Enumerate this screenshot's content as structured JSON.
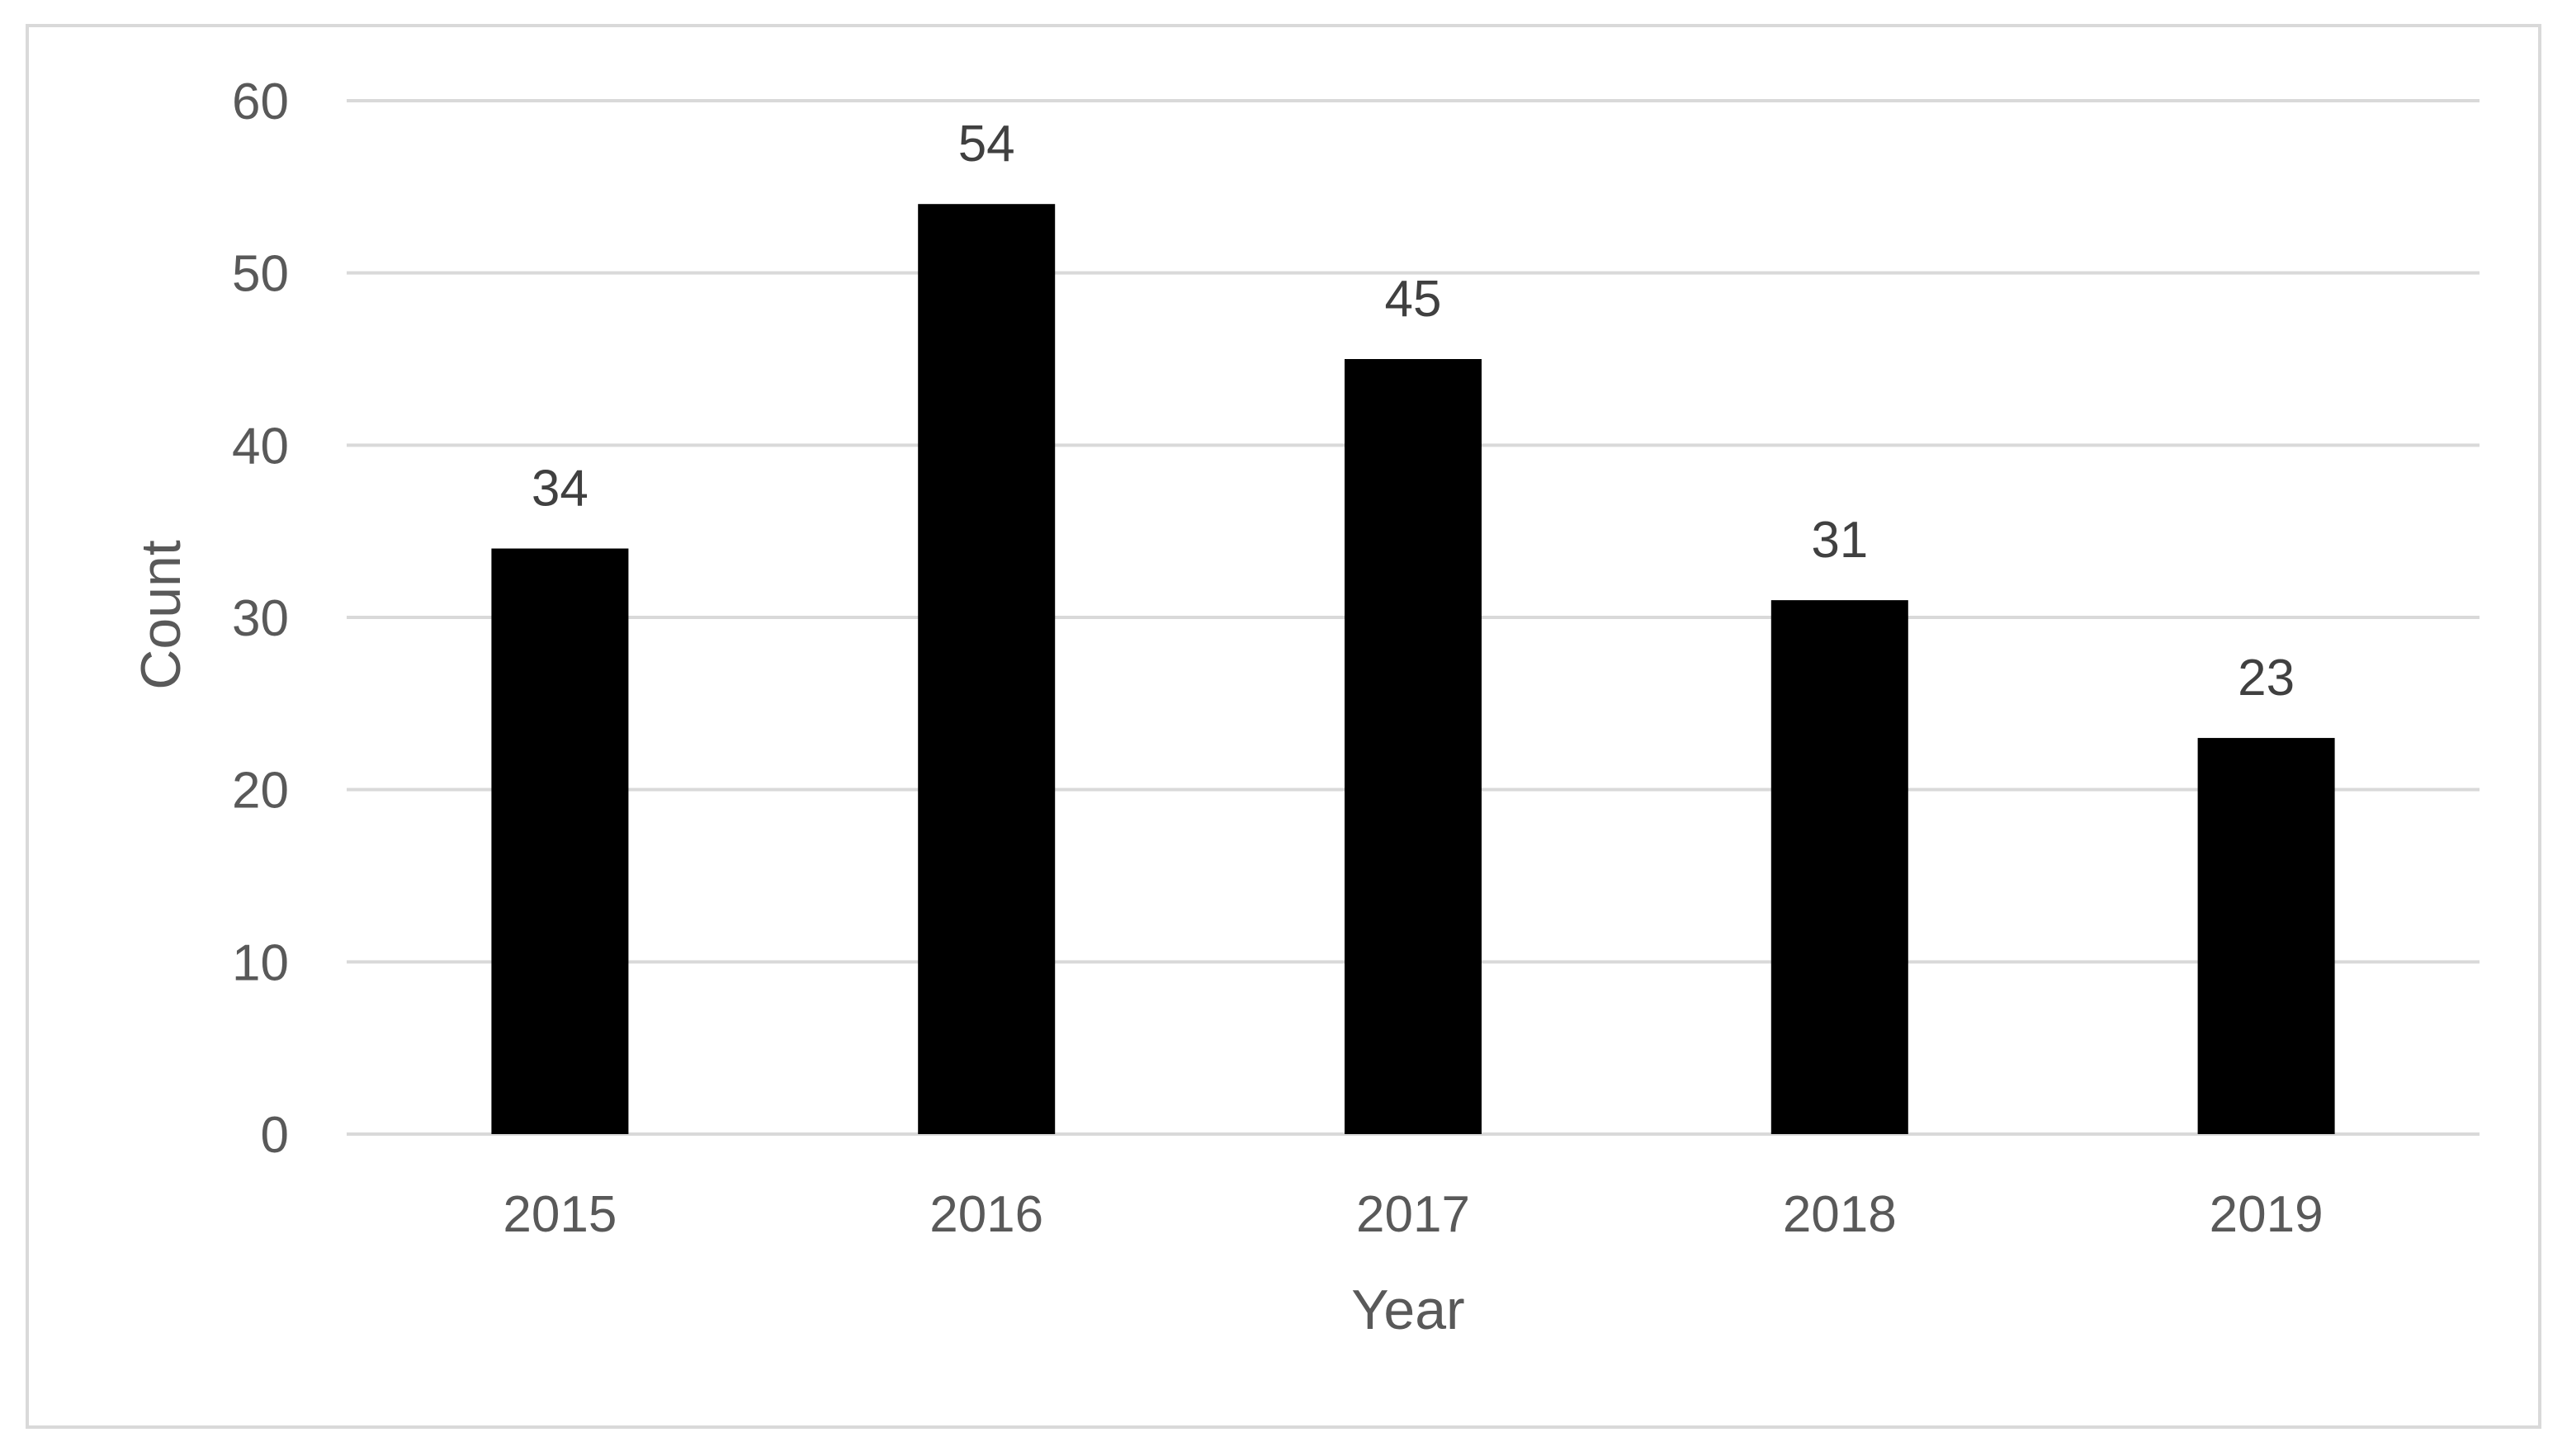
{
  "chart_data": {
    "type": "bar",
    "title": "",
    "xlabel": "Year",
    "ylabel": "Count",
    "categories": [
      "2015",
      "2016",
      "2017",
      "2018",
      "2019"
    ],
    "values": [
      34,
      54,
      45,
      31,
      23
    ],
    "data_labels": [
      "34",
      "54",
      "45",
      "31",
      "23"
    ],
    "ylim": [
      0,
      60
    ],
    "yticks": [
      0,
      10,
      20,
      30,
      40,
      50,
      60
    ],
    "ytick_labels": [
      "0",
      "10",
      "20",
      "30",
      "40",
      "50",
      "60"
    ],
    "grid": true,
    "legend": "none",
    "colors": {
      "bar": "#000000",
      "grid": "#d9d9d9",
      "tick_text": "#595959",
      "label_text": "#404040",
      "frame": "#d9d9d9"
    }
  }
}
